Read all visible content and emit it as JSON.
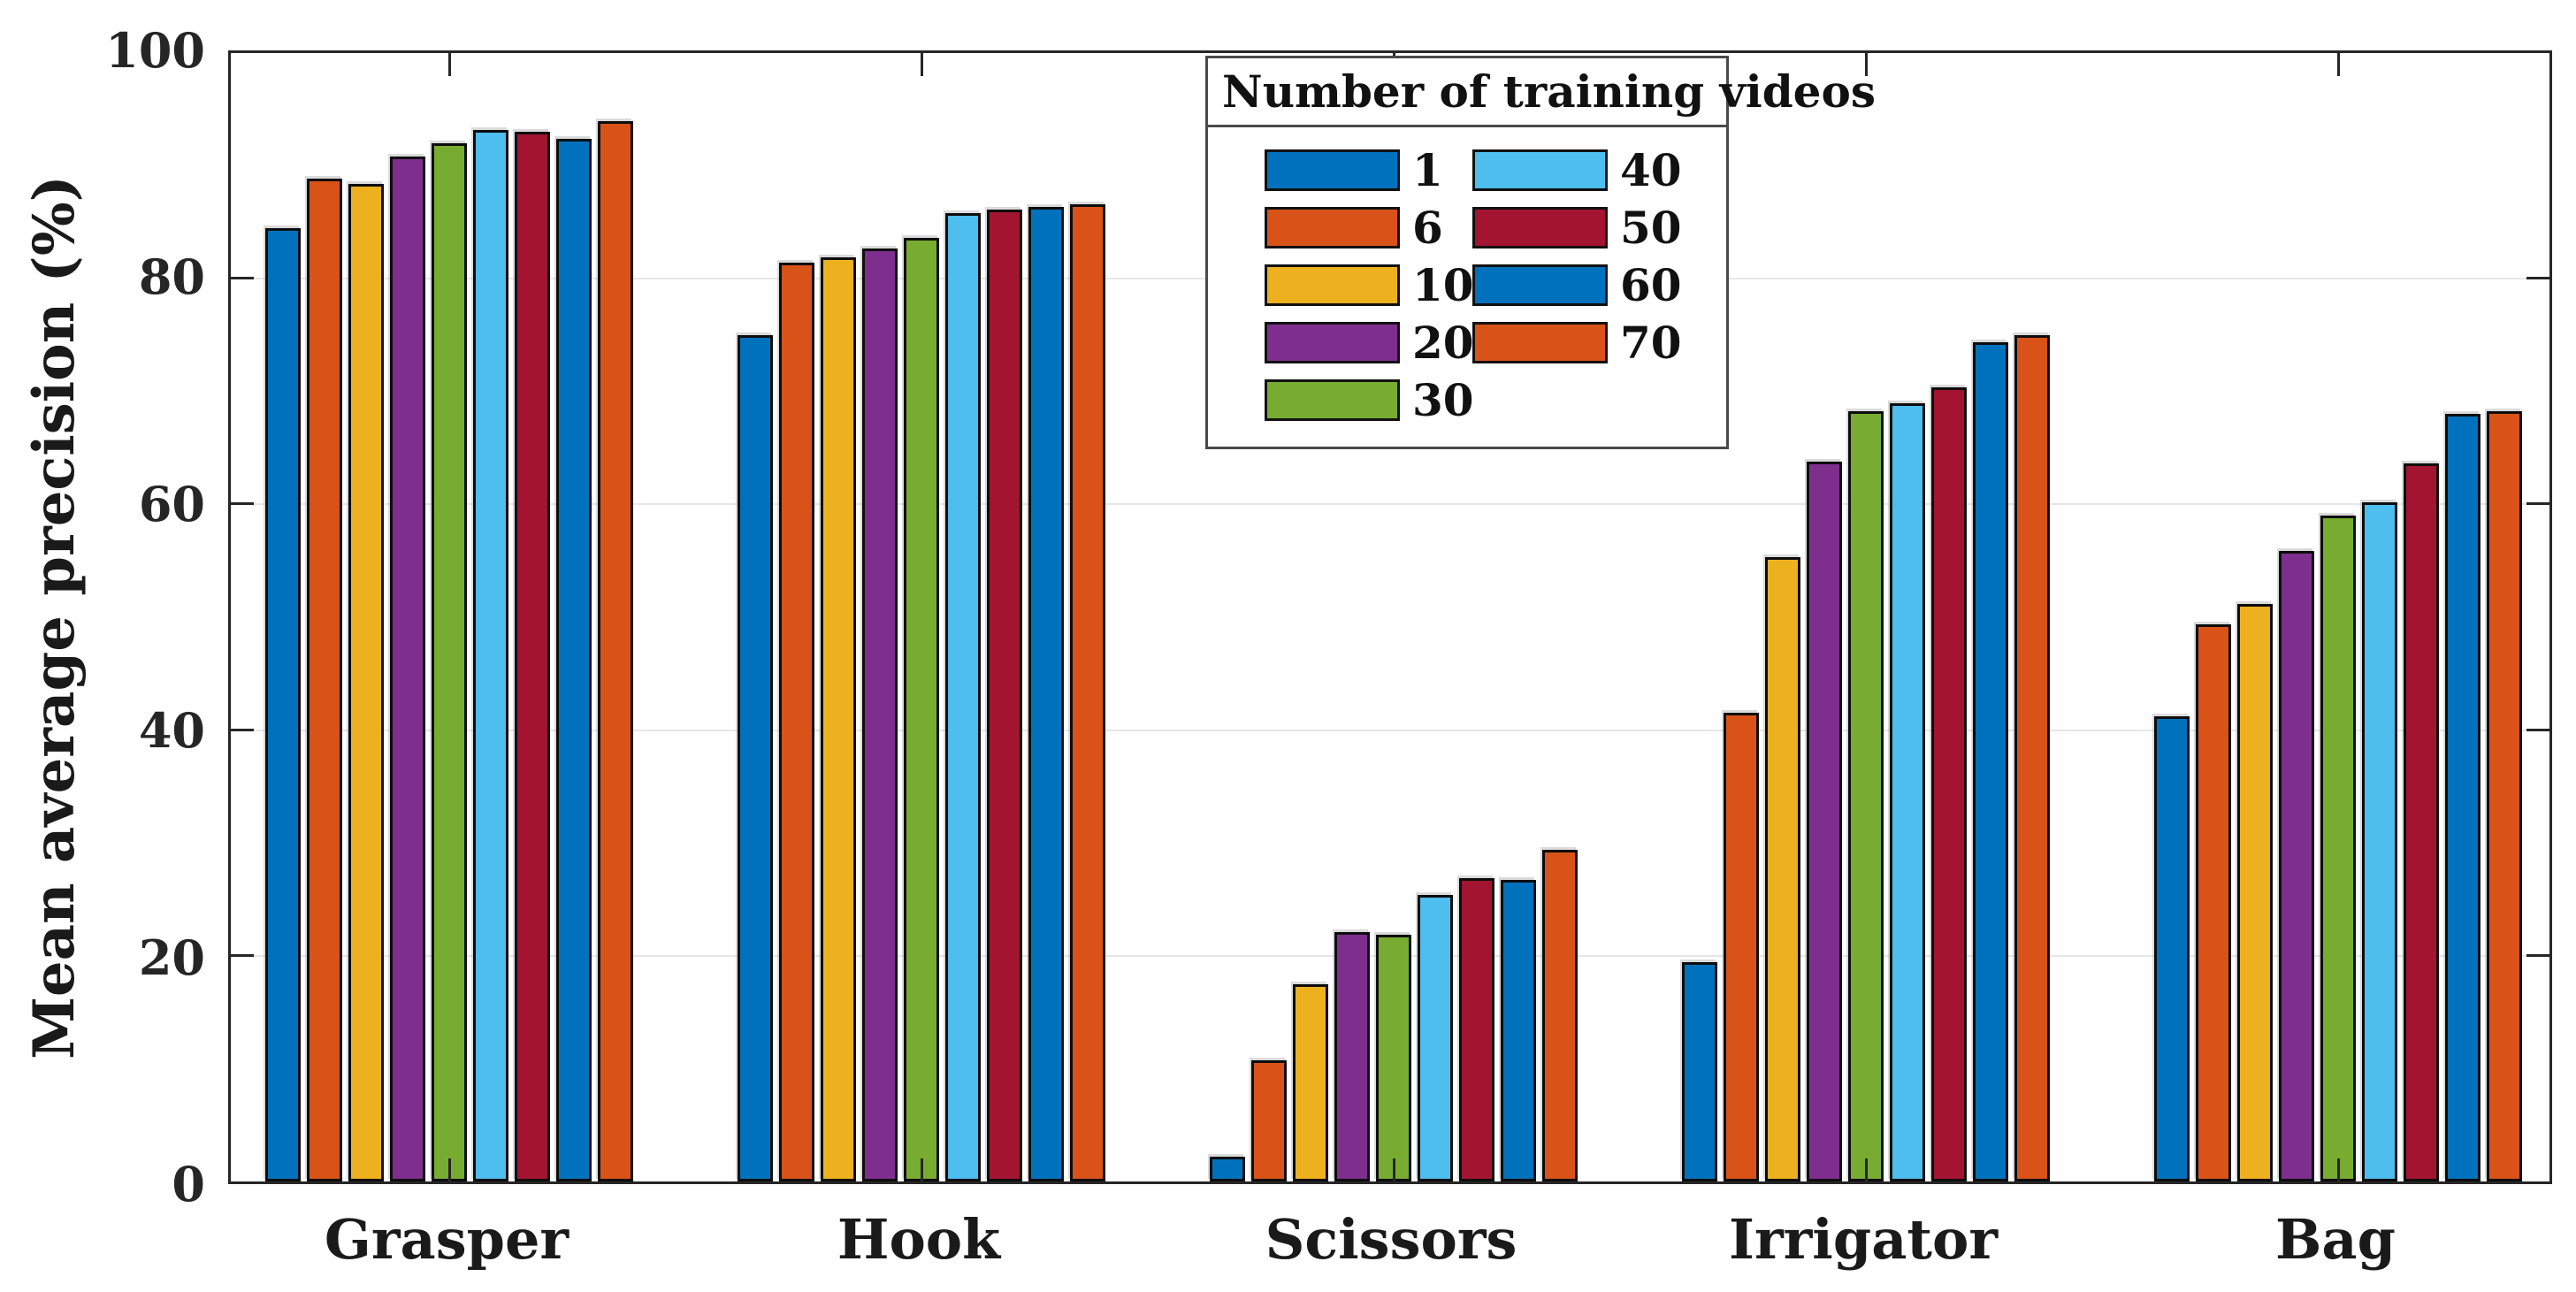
{
  "chart_data": {
    "type": "bar",
    "title": "",
    "xlabel": "",
    "ylabel": "Mean average precision (%)",
    "categories": [
      "Grasper",
      "Hook",
      "Scissors",
      "Irrigator",
      "Bag"
    ],
    "legend_title": "Number of training videos",
    "legend_position": "inside-top-center",
    "grid": "horizontal",
    "ylim": [
      0,
      100
    ],
    "yticks": [
      0,
      20,
      40,
      60,
      80,
      100
    ],
    "series": [
      {
        "name": "1",
        "color": "#0072BD",
        "values": [
          84.5,
          75.0,
          2.2,
          19.4,
          41.2
        ]
      },
      {
        "name": "6",
        "color": "#D95319",
        "values": [
          88.9,
          81.4,
          10.7,
          41.5,
          49.4
        ]
      },
      {
        "name": "10",
        "color": "#EDB120",
        "values": [
          88.4,
          81.9,
          17.5,
          55.3,
          51.2
        ]
      },
      {
        "name": "20",
        "color": "#7E2F8E",
        "values": [
          90.8,
          82.7,
          22.1,
          63.8,
          55.9
        ]
      },
      {
        "name": "30",
        "color": "#77AC30",
        "values": [
          92.0,
          83.6,
          21.9,
          68.3,
          59.0
        ]
      },
      {
        "name": "40",
        "color": "#4DBEEE",
        "values": [
          93.2,
          85.8,
          25.4,
          69.0,
          60.2
        ]
      },
      {
        "name": "50",
        "color": "#A2142F",
        "values": [
          93.0,
          86.1,
          26.9,
          70.4,
          63.6
        ]
      },
      {
        "name": "60",
        "color": "#0072BD",
        "values": [
          92.4,
          86.4,
          26.7,
          74.4,
          68.0
        ]
      },
      {
        "name": "70",
        "color": "#D95319",
        "values": [
          94.0,
          86.6,
          29.4,
          75.0,
          68.3
        ]
      }
    ],
    "colors": {
      "axis": "#262626",
      "gridline": "#e7e7e7",
      "bar_edge": "#0d0d0d",
      "background": "#ffffff"
    }
  }
}
